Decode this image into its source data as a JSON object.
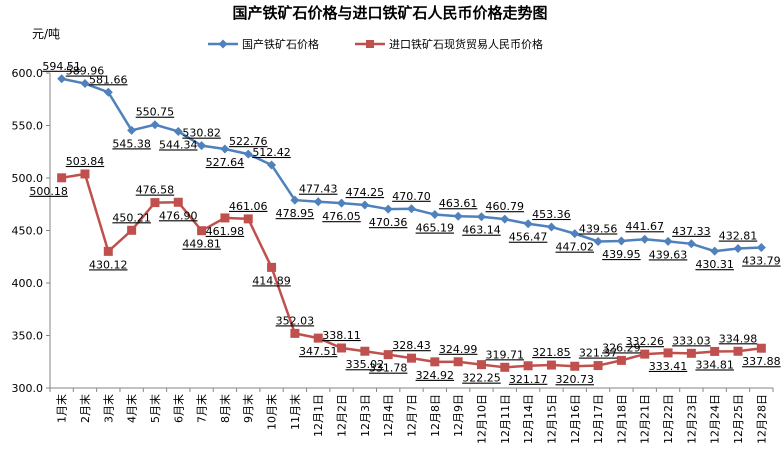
{
  "chart_data": {
    "type": "line",
    "title": "国产铁矿石价格与进口铁矿石人民币价格走势图",
    "ylabel": "元/吨",
    "xlabel": "",
    "ylim": [
      300,
      600
    ],
    "yticks": [
      "300.0",
      "350.0",
      "400.0",
      "450.0",
      "500.0",
      "550.0",
      "600.0"
    ],
    "grid": false,
    "legend_position": "top-center",
    "categories": [
      "1月末",
      "2月末",
      "3月末",
      "4月末",
      "5月末",
      "6月末",
      "7月末",
      "8月末",
      "9月末",
      "10月末",
      "11月末",
      "12月1日",
      "12月2日",
      "12月3日",
      "12月4日",
      "12月7日",
      "12月8日",
      "12月9日",
      "12月10日",
      "12月11日",
      "12月14日",
      "12月15日",
      "12月16日",
      "12月17日",
      "12月18日",
      "12月21日",
      "12月22日",
      "12月23日",
      "12月24日",
      "12月25日",
      "12月28日"
    ],
    "series": [
      {
        "name": "国产铁矿石价格",
        "color": "#4f81bd",
        "marker": "diamond",
        "values": [
          594.51,
          589.96,
          581.66,
          545.38,
          550.75,
          544.34,
          530.82,
          527.64,
          522.76,
          512.42,
          478.95,
          477.43,
          476.05,
          474.25,
          470.36,
          470.7,
          465.19,
          463.61,
          463.14,
          460.79,
          456.47,
          453.36,
          447.02,
          439.56,
          439.95,
          441.67,
          439.63,
          437.33,
          430.31,
          432.81,
          433.79
        ],
        "labels": [
          "594.51",
          "589.96",
          "581.66",
          "545.38",
          "550.75",
          "544.34",
          "530.82",
          "527.64",
          "522.76",
          "512.42",
          "478.95",
          "477.43",
          "476.05",
          "474.25",
          "470.36",
          "470.70",
          "465.19",
          "463.61",
          "463.14",
          "460.79",
          "456.47",
          "453.36",
          "447.02",
          "439.56",
          "439.95",
          "441.67",
          "439.63",
          "437.33",
          "430.31",
          "432.81",
          "433.79"
        ]
      },
      {
        "name": "进口铁矿石现货贸易人民币价格",
        "color": "#c0504d",
        "marker": "square",
        "values": [
          500.18,
          503.84,
          430.12,
          450.21,
          476.58,
          476.9,
          449.81,
          461.98,
          461.06,
          414.89,
          352.03,
          347.51,
          338.11,
          335.02,
          331.78,
          328.43,
          324.92,
          324.99,
          322.25,
          319.71,
          321.17,
          321.85,
          320.73,
          321.37,
          326.29,
          332.26,
          333.41,
          333.03,
          334.81,
          334.98,
          337.88
        ],
        "labels": [
          "500.18",
          "503.84",
          "430.12",
          "450.21",
          "476.58",
          "476.90",
          "449.81",
          "461.98",
          "461.06",
          "414.89",
          "352.03",
          "347.51",
          "338.11",
          "335.02",
          "331.78",
          "328.43",
          "324.92",
          "324.99",
          "322.25",
          "319.71",
          "321.17",
          "321.85",
          "320.73",
          "321.37",
          "326.29",
          "332.26",
          "333.41",
          "333.03",
          "334.81",
          "334.98",
          "337.88"
        ]
      }
    ]
  }
}
